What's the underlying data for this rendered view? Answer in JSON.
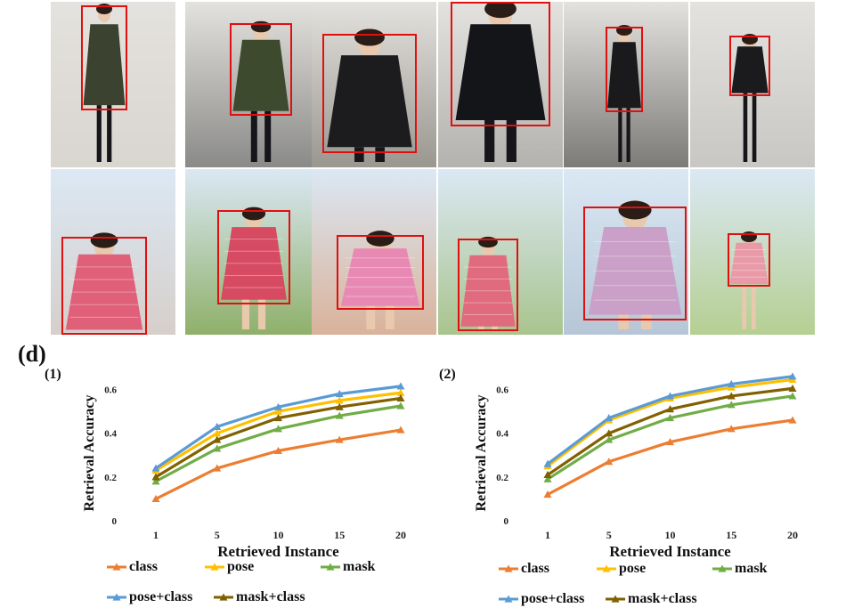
{
  "figure": {
    "panel_label": "(d)",
    "sub_labels": [
      "(1)",
      "(2)"
    ]
  },
  "photos": {
    "row1": [
      {
        "name": "photo-olive-coat-mirror",
        "desc_icon": "person-photo-icon",
        "bg": "#d9d5cf",
        "coat": "#3c4230"
      },
      {
        "name": "photo-olive-coat-hat",
        "desc_icon": "person-photo-icon",
        "bg": "#8a8a88",
        "coat": "#3d4a2e"
      },
      {
        "name": "photo-black-coat-hat",
        "desc_icon": "person-photo-icon",
        "bg": "#9a9690",
        "coat": "#1c1c1e"
      },
      {
        "name": "photo-black-coat-closeup",
        "desc_icon": "person-photo-icon",
        "bg": "#b4b2ae",
        "coat": "#141518"
      },
      {
        "name": "photo-black-coat-lockers",
        "desc_icon": "person-photo-icon",
        "bg": "#7d7b78",
        "coat": "#1a1a1c"
      },
      {
        "name": "photo-black-coat-street",
        "desc_icon": "person-photo-icon",
        "bg": "#c9c7c3",
        "coat": "#1b1b1d"
      }
    ],
    "row2": [
      {
        "name": "photo-pink-check-selfie",
        "desc_icon": "person-photo-icon",
        "bg": "#d6cfcb",
        "dress": "#e0607a"
      },
      {
        "name": "photo-pink-check-bicycle",
        "desc_icon": "person-photo-icon",
        "bg": "#8fb06a",
        "dress": "#d64a62"
      },
      {
        "name": "photo-pink-top-selfie",
        "desc_icon": "person-photo-icon",
        "bg": "#d9b29a",
        "dress": "#e889b4"
      },
      {
        "name": "photo-pink-check-fence",
        "desc_icon": "person-photo-icon",
        "bg": "#a9c48e",
        "dress": "#e06a7e"
      },
      {
        "name": "photo-floral-dress-sitting",
        "desc_icon": "person-photo-icon",
        "bg": "#b6c6d6",
        "dress": "#caa0c8"
      },
      {
        "name": "photo-pink-dress-field",
        "desc_icon": "person-photo-icon",
        "bg": "#b5cf92",
        "dress": "#e89aa8"
      }
    ]
  },
  "chart_data": [
    {
      "type": "line",
      "label": "(1)",
      "title": "",
      "xlabel": "Retrieved Instance",
      "ylabel": "Retrieval Accuracy",
      "categories": [
        "1",
        "5",
        "10",
        "15",
        "20"
      ],
      "ylim": [
        0,
        0.7
      ],
      "yticks": [
        "0",
        "0.2",
        "0.4",
        "0.6"
      ],
      "ytick_values": [
        0,
        0.2,
        0.4,
        0.6
      ],
      "series": [
        {
          "name": "class",
          "color": "#ed7d31",
          "values": [
            0.1,
            0.24,
            0.32,
            0.37,
            0.415
          ]
        },
        {
          "name": "pose",
          "color": "#ffc000",
          "values": [
            0.23,
            0.4,
            0.5,
            0.55,
            0.585
          ]
        },
        {
          "name": "mask",
          "color": "#70ad47",
          "values": [
            0.18,
            0.33,
            0.42,
            0.48,
            0.525
          ]
        },
        {
          "name": "pose+class",
          "color": "#5b9bd5",
          "values": [
            0.24,
            0.43,
            0.52,
            0.58,
            0.615
          ]
        },
        {
          "name": "mask+class",
          "color": "#806000",
          "values": [
            0.2,
            0.37,
            0.47,
            0.52,
            0.56
          ]
        }
      ]
    },
    {
      "type": "line",
      "label": "(2)",
      "title": "",
      "xlabel": "Retrieved Instance",
      "ylabel": "Retrieval Accuracy",
      "categories": [
        "1",
        "5",
        "10",
        "15",
        "20"
      ],
      "ylim": [
        0,
        0.7
      ],
      "yticks": [
        "0",
        "0.2",
        "0.4",
        "0.6"
      ],
      "ytick_values": [
        0,
        0.2,
        0.4,
        0.6
      ],
      "series": [
        {
          "name": "class",
          "color": "#ed7d31",
          "values": [
            0.12,
            0.27,
            0.36,
            0.42,
            0.46
          ]
        },
        {
          "name": "pose",
          "color": "#ffc000",
          "values": [
            0.25,
            0.46,
            0.56,
            0.61,
            0.645
          ]
        },
        {
          "name": "mask",
          "color": "#70ad47",
          "values": [
            0.19,
            0.37,
            0.47,
            0.53,
            0.57
          ]
        },
        {
          "name": "pose+class",
          "color": "#5b9bd5",
          "values": [
            0.26,
            0.47,
            0.57,
            0.625,
            0.66
          ]
        },
        {
          "name": "mask+class",
          "color": "#806000",
          "values": [
            0.21,
            0.4,
            0.51,
            0.57,
            0.605
          ]
        }
      ]
    }
  ]
}
